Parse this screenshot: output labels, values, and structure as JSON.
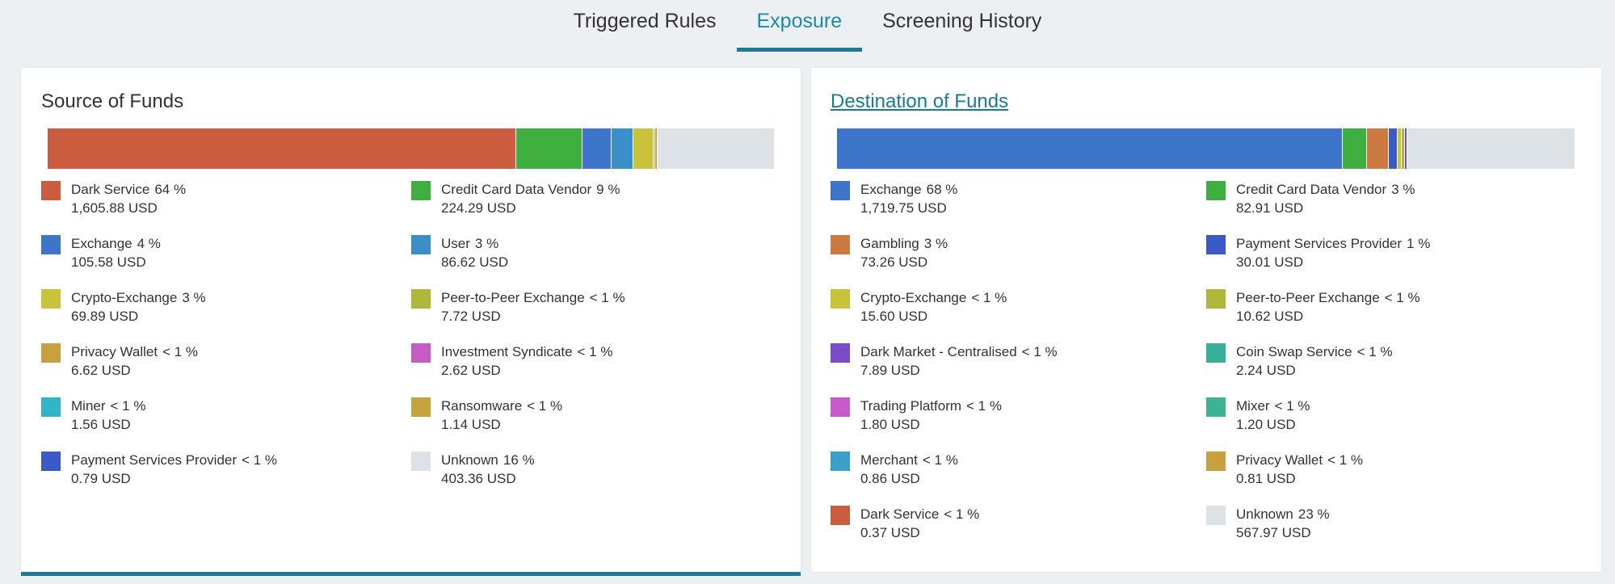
{
  "tabs": [
    {
      "label": "Triggered Rules"
    },
    {
      "label": "Exposure"
    },
    {
      "label": "Screening History"
    }
  ],
  "source": {
    "title": "Source of Funds",
    "items": [
      {
        "name": "Dark Service",
        "pct": "64 %",
        "amount": "1,605.88 USD",
        "color": "#cc5c3e"
      },
      {
        "name": "Credit Card Data Vendor",
        "pct": "9 %",
        "amount": "224.29 USD",
        "color": "#3fb03f"
      },
      {
        "name": "Exchange",
        "pct": "4 %",
        "amount": "105.58 USD",
        "color": "#3c75c9"
      },
      {
        "name": "User",
        "pct": "3 %",
        "amount": "86.62 USD",
        "color": "#3b8fc9"
      },
      {
        "name": "Crypto-Exchange",
        "pct": "3 %",
        "amount": "69.89 USD",
        "color": "#c9c33b"
      },
      {
        "name": "Peer-to-Peer Exchange",
        "pct": "< 1 %",
        "amount": "7.72 USD",
        "color": "#afb83a"
      },
      {
        "name": "Privacy Wallet",
        "pct": "< 1 %",
        "amount": "6.62 USD",
        "color": "#c9a03e"
      },
      {
        "name": "Investment Syndicate",
        "pct": "< 1 %",
        "amount": "2.62 USD",
        "color": "#c65ac6"
      },
      {
        "name": "Miner",
        "pct": "< 1 %",
        "amount": "1.56 USD",
        "color": "#33b5c9"
      },
      {
        "name": "Ransomware",
        "pct": "< 1 %",
        "amount": "1.14 USD",
        "color": "#c7a33e"
      },
      {
        "name": "Payment Services Provider",
        "pct": "< 1 %",
        "amount": "0.79 USD",
        "color": "#3a5bc7"
      },
      {
        "name": "Unknown",
        "pct": "16 %",
        "amount": "403.36 USD",
        "color": "#dde2e7"
      }
    ],
    "bar": [
      {
        "value": 64,
        "color": "#cc5c3e"
      },
      {
        "value": 9,
        "color": "#3fb03f"
      },
      {
        "value": 4,
        "color": "#3c75c9"
      },
      {
        "value": 3,
        "color": "#3b8fc9"
      },
      {
        "value": 2.7,
        "color": "#c9c33b"
      },
      {
        "value": 0.3,
        "color": "#afb83a"
      },
      {
        "value": 0.3,
        "color": "#c9a03e"
      },
      {
        "value": 16,
        "color": "#dde2e7"
      }
    ]
  },
  "destination": {
    "title": "Destination of Funds",
    "items": [
      {
        "name": "Exchange",
        "pct": "68 %",
        "amount": "1,719.75 USD",
        "color": "#3c75c9"
      },
      {
        "name": "Credit Card Data Vendor",
        "pct": "3 %",
        "amount": "82.91 USD",
        "color": "#3fb03f"
      },
      {
        "name": "Gambling",
        "pct": "3 %",
        "amount": "73.26 USD",
        "color": "#cd7a42"
      },
      {
        "name": "Payment Services Provider",
        "pct": "1 %",
        "amount": "30.01 USD",
        "color": "#3a5bc7"
      },
      {
        "name": "Crypto-Exchange",
        "pct": "< 1 %",
        "amount": "15.60 USD",
        "color": "#c9c33b"
      },
      {
        "name": "Peer-to-Peer Exchange",
        "pct": "< 1 %",
        "amount": "10.62 USD",
        "color": "#afb83a"
      },
      {
        "name": "Dark Market - Centralised",
        "pct": "< 1 %",
        "amount": "7.89 USD",
        "color": "#7b4bc9"
      },
      {
        "name": "Coin Swap Service",
        "pct": "< 1 %",
        "amount": "2.24 USD",
        "color": "#37b09a"
      },
      {
        "name": "Trading Platform",
        "pct": "< 1 %",
        "amount": "1.80 USD",
        "color": "#c95ac9"
      },
      {
        "name": "Mixer",
        "pct": "< 1 %",
        "amount": "1.20 USD",
        "color": "#3db393"
      },
      {
        "name": "Merchant",
        "pct": "< 1 %",
        "amount": "0.86 USD",
        "color": "#3aa0c9"
      },
      {
        "name": "Privacy Wallet",
        "pct": "< 1 %",
        "amount": "0.81 USD",
        "color": "#c9a03e"
      },
      {
        "name": "Dark Service",
        "pct": "< 1 %",
        "amount": "0.37 USD",
        "color": "#cc5c3e"
      },
      {
        "name": "Unknown",
        "pct": "23 %",
        "amount": "567.97 USD",
        "color": "#dde2e7"
      }
    ],
    "bar": [
      {
        "value": 68.5,
        "color": "#3c75c9"
      },
      {
        "value": 3.3,
        "color": "#3fb03f"
      },
      {
        "value": 2.9,
        "color": "#cd7a42"
      },
      {
        "value": 1.2,
        "color": "#3a5bc7"
      },
      {
        "value": 0.6,
        "color": "#c9c33b"
      },
      {
        "value": 0.4,
        "color": "#afb83a"
      },
      {
        "value": 0.3,
        "color": "#7b4bc9"
      },
      {
        "value": 22.8,
        "color": "#dde2e7"
      }
    ]
  }
}
